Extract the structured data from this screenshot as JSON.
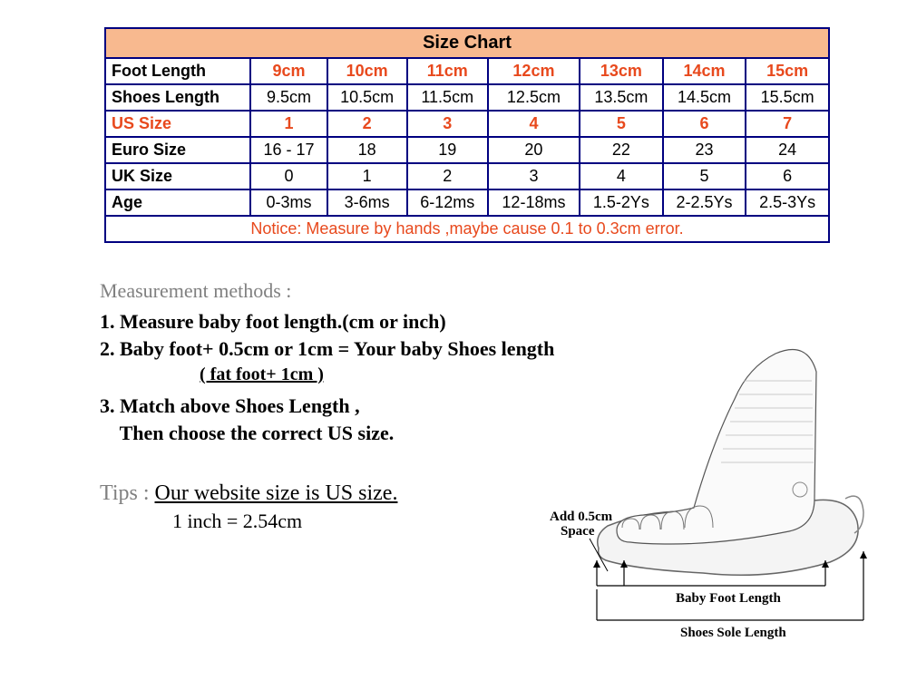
{
  "table": {
    "title": "Size Chart",
    "title_bg": "#f8b98f",
    "border_color": "#000080",
    "rows": [
      {
        "label": "Foot Length",
        "label_color": "#000000",
        "cell_color": "#e8491d",
        "cell_bold": true,
        "cells": [
          "9cm",
          "10cm",
          "11cm",
          "12cm",
          "13cm",
          "14cm",
          "15cm"
        ]
      },
      {
        "label": "Shoes Length",
        "label_color": "#000000",
        "cell_color": "#000000",
        "cell_bold": false,
        "cells": [
          "9.5cm",
          "10.5cm",
          "11.5cm",
          "12.5cm",
          "13.5cm",
          "14.5cm",
          "15.5cm"
        ]
      },
      {
        "label": "US Size",
        "label_color": "#e8491d",
        "cell_color": "#e8491d",
        "cell_bold": true,
        "cells": [
          "1",
          "2",
          "3",
          "4",
          "5",
          "6",
          "7"
        ]
      },
      {
        "label": "Euro Size",
        "label_color": "#000000",
        "cell_color": "#000000",
        "cell_bold": false,
        "cells": [
          "16 - 17",
          "18",
          "19",
          "20",
          "22",
          "23",
          "24"
        ]
      },
      {
        "label": "UK Size",
        "label_color": "#000000",
        "cell_color": "#000000",
        "cell_bold": false,
        "cells": [
          "0",
          "1",
          "2",
          "3",
          "4",
          "5",
          "6"
        ]
      },
      {
        "label": "Age",
        "label_color": "#000000",
        "cell_color": "#000000",
        "cell_bold": false,
        "cells": [
          "0-3ms",
          "3-6ms",
          "6-12ms",
          "12-18ms",
          "1.5-2Ys",
          "2-2.5Ys",
          "2.5-3Ys"
        ]
      }
    ],
    "notice": "Notice: Measure by hands ,maybe cause 0.1 to 0.3cm error.",
    "notice_color": "#e8491d"
  },
  "methods": {
    "title": "Measurement methods :",
    "step1": "1. Measure baby foot length.(cm or inch)",
    "step2": "2. Baby foot+ 0.5cm or 1cm = Your baby Shoes length",
    "step2_sub": "( fat foot+ 1cm )",
    "step3a": "3. Match above Shoes Length ,",
    "step3b": "    Then choose the correct US size."
  },
  "tips": {
    "label": "Tips : ",
    "main": "Our website size is US size.",
    "sub": "1 inch = 2.54cm"
  },
  "diagram": {
    "add_label_1": "Add 0.5cm",
    "add_label_2": "Space",
    "foot_label": "Baby Foot Length",
    "sole_label": "Shoes Sole Length"
  }
}
